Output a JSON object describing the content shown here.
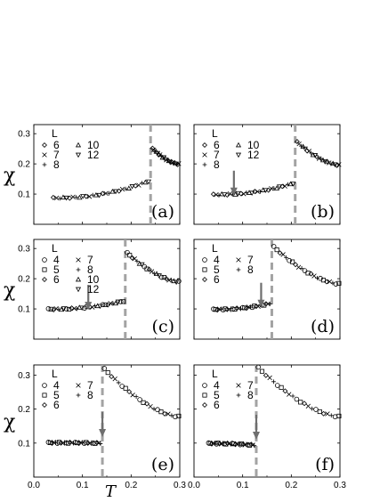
{
  "colors": {
    "dashed_line": "#a3a3a3",
    "arrow": "#6e6e6e",
    "marker": "#000000"
  },
  "chart_data": [
    {
      "id": "a",
      "type": "scatter",
      "panel_label": "(a)",
      "ylabel": "χ",
      "xlabel": "",
      "xlim": [
        0,
        0.3
      ],
      "ylim": [
        0,
        0.33
      ],
      "yticks": [
        "0.1",
        "0.2",
        "0.3"
      ],
      "xticks": [
        "0.0",
        "0.1",
        "0.2",
        "0.3"
      ],
      "legend": {
        "title": "L",
        "entries": [
          {
            "symbol": "◇",
            "label": "6"
          },
          {
            "symbol": "△",
            "label": "10"
          },
          {
            "symbol": "×",
            "label": "7"
          },
          {
            "symbol": "▽",
            "label": "12"
          },
          {
            "symbol": "+",
            "label": "8"
          }
        ]
      },
      "transition_T": 0.24,
      "arrow": null,
      "low_branch": {
        "T_start": 0.04,
        "chi_start": 0.087,
        "chi_end": 0.143
      },
      "high_branch": {
        "chi_start": 0.25,
        "chi_end": 0.199
      },
      "series": [
        {
          "name": "6",
          "symbol": "◇"
        },
        {
          "name": "7",
          "symbol": "×"
        },
        {
          "name": "8",
          "symbol": "+"
        },
        {
          "name": "10",
          "symbol": "△"
        },
        {
          "name": "12",
          "symbol": "▽"
        }
      ]
    },
    {
      "id": "b",
      "type": "scatter",
      "panel_label": "(b)",
      "ylabel": "",
      "xlabel": "",
      "xlim": [
        0,
        0.3
      ],
      "ylim": [
        0,
        0.33
      ],
      "yticks": [],
      "xticks": [
        "0.0",
        "0.1",
        "0.2",
        "0.3"
      ],
      "legend": {
        "title": "L",
        "entries": [
          {
            "symbol": "◇",
            "label": "6"
          },
          {
            "symbol": "△",
            "label": "10"
          },
          {
            "symbol": "×",
            "label": "7"
          },
          {
            "symbol": "▽",
            "label": "12"
          },
          {
            "symbol": "+",
            "label": "8"
          }
        ]
      },
      "transition_T": 0.208,
      "arrow": {
        "T": 0.082,
        "chi": 0.095
      },
      "low_branch": {
        "T_start": 0.04,
        "chi_start": 0.098,
        "chi_end": 0.136
      },
      "high_branch": {
        "chi_start": 0.272,
        "chi_end": 0.196
      },
      "series": [
        {
          "name": "6",
          "symbol": "◇"
        },
        {
          "name": "7",
          "symbol": "×"
        },
        {
          "name": "8",
          "symbol": "+"
        },
        {
          "name": "10",
          "symbol": "△"
        },
        {
          "name": "12",
          "symbol": "▽"
        }
      ]
    },
    {
      "id": "c",
      "type": "scatter",
      "panel_label": "(c)",
      "ylabel": "χ",
      "xlabel": "",
      "xlim": [
        0,
        0.3
      ],
      "ylim": [
        0,
        0.33
      ],
      "yticks": [
        "0.1",
        "0.2",
        "0.3"
      ],
      "xticks": [
        "0.0",
        "0.1",
        "0.2",
        "0.3"
      ],
      "legend": {
        "title": "L",
        "entries": [
          {
            "symbol": "○",
            "label": "4"
          },
          {
            "symbol": "×",
            "label": "7"
          },
          {
            "symbol": "□",
            "label": "5"
          },
          {
            "symbol": "+",
            "label": "8"
          },
          {
            "symbol": "◇",
            "label": "6"
          },
          {
            "symbol": "△",
            "label": "10"
          },
          {
            "symbol": "",
            "label": ""
          },
          {
            "symbol": "▽",
            "label": "12"
          }
        ]
      },
      "transition_T": 0.188,
      "arrow": {
        "T": 0.112,
        "chi": 0.097
      },
      "low_branch": {
        "T_start": 0.03,
        "chi_start": 0.099,
        "chi_end": 0.126
      },
      "high_branch": {
        "chi_start": 0.285,
        "chi_end": 0.19
      },
      "series": [
        {
          "name": "4",
          "symbol": "○"
        },
        {
          "name": "5",
          "symbol": "□"
        },
        {
          "name": "6",
          "symbol": "◇"
        },
        {
          "name": "7",
          "symbol": "×"
        },
        {
          "name": "8",
          "symbol": "+"
        },
        {
          "name": "10",
          "symbol": "△"
        },
        {
          "name": "12",
          "symbol": "▽"
        }
      ]
    },
    {
      "id": "d",
      "type": "scatter",
      "panel_label": "(d)",
      "ylabel": "",
      "xlabel": "",
      "xlim": [
        0,
        0.3
      ],
      "ylim": [
        0,
        0.33
      ],
      "yticks": [],
      "xticks": [
        "0.0",
        "0.1",
        "0.2",
        "0.3"
      ],
      "legend": {
        "title": "L",
        "entries": [
          {
            "symbol": "○",
            "label": "4"
          },
          {
            "symbol": "×",
            "label": "7"
          },
          {
            "symbol": "□",
            "label": "5"
          },
          {
            "symbol": "+",
            "label": "8"
          },
          {
            "symbol": "◇",
            "label": "6"
          }
        ]
      },
      "transition_T": 0.16,
      "arrow": {
        "T": 0.138,
        "chi": 0.104
      },
      "low_branch": {
        "T_start": 0.04,
        "chi_start": 0.098,
        "chi_end": 0.118
      },
      "high_branch": {
        "chi_start": 0.305,
        "chi_end": 0.183
      },
      "series": [
        {
          "name": "4",
          "symbol": "○"
        },
        {
          "name": "5",
          "symbol": "□"
        },
        {
          "name": "6",
          "symbol": "◇"
        },
        {
          "name": "7",
          "symbol": "×"
        },
        {
          "name": "8",
          "symbol": "+"
        }
      ]
    },
    {
      "id": "e",
      "type": "scatter",
      "panel_label": "(e)",
      "ylabel": "χ",
      "xlabel": "",
      "xlim": [
        0,
        0.3
      ],
      "ylim": [
        0,
        0.33
      ],
      "yticks": [
        "0.1",
        "0.2",
        "0.3"
      ],
      "xticks": [
        "0.0",
        "0.1",
        "0.2",
        "0.3"
      ],
      "legend": {
        "title": "L",
        "entries": [
          {
            "symbol": "○",
            "label": "4"
          },
          {
            "symbol": "×",
            "label": "7"
          },
          {
            "symbol": "□",
            "label": "5"
          },
          {
            "symbol": "+",
            "label": "8"
          },
          {
            "symbol": "◇",
            "label": "6"
          }
        ]
      },
      "transition_T": 0.141,
      "arrow": {
        "T": 0.141,
        "chi": 0.118
      },
      "low_branch": {
        "T_start": 0.03,
        "chi_start": 0.101,
        "chi_end": 0.1
      },
      "high_branch": {
        "chi_start": 0.318,
        "chi_end": 0.178
      },
      "series": [
        {
          "name": "4",
          "symbol": "○"
        },
        {
          "name": "5",
          "symbol": "□"
        },
        {
          "name": "6",
          "symbol": "◇"
        },
        {
          "name": "7",
          "symbol": "×"
        },
        {
          "name": "8",
          "symbol": "+"
        }
      ]
    },
    {
      "id": "f",
      "type": "scatter",
      "panel_label": "(f)",
      "ylabel": "",
      "xlabel": "T",
      "xlim": [
        0,
        0.3
      ],
      "ylim": [
        0,
        0.33
      ],
      "yticks": [],
      "xticks": [
        "0.0",
        "0.1",
        "0.2",
        "0.3"
      ],
      "legend": {
        "title": "L",
        "entries": [
          {
            "symbol": "○",
            "label": "4"
          },
          {
            "symbol": "×",
            "label": "7"
          },
          {
            "symbol": "□",
            "label": "5"
          },
          {
            "symbol": "+",
            "label": "8"
          },
          {
            "symbol": "◇",
            "label": "6"
          }
        ]
      },
      "transition_T": 0.128,
      "arrow": {
        "T": 0.128,
        "chi": 0.11
      },
      "low_branch": {
        "T_start": 0.03,
        "chi_start": 0.099,
        "chi_end": 0.094
      },
      "high_branch": {
        "chi_start": 0.322,
        "chi_end": 0.178
      },
      "series": [
        {
          "name": "4",
          "symbol": "○"
        },
        {
          "name": "5",
          "symbol": "□"
        },
        {
          "name": "6",
          "symbol": "◇"
        },
        {
          "name": "7",
          "symbol": "×"
        },
        {
          "name": "8",
          "symbol": "+"
        }
      ]
    }
  ]
}
